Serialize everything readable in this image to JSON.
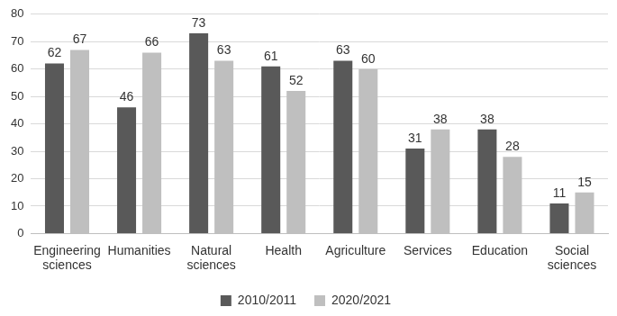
{
  "chart_data": {
    "type": "bar",
    "categories": [
      "Engineering sciences",
      "Humanities",
      "Natural sciences",
      "Health",
      "Agriculture",
      "Services",
      "Education",
      "Social sciences"
    ],
    "series": [
      {
        "name": "2010/2011",
        "color": "#595959",
        "values": [
          62,
          46,
          73,
          61,
          63,
          31,
          38,
          11
        ]
      },
      {
        "name": "2020/2021",
        "color": "#bfbfbf",
        "values": [
          67,
          66,
          63,
          52,
          60,
          38,
          28,
          15
        ]
      }
    ],
    "ylim": [
      0,
      80
    ],
    "yticks": [
      0,
      10,
      20,
      30,
      40,
      50,
      60,
      70,
      80
    ],
    "grid": true,
    "legend": "bottom",
    "data_labels": true
  }
}
